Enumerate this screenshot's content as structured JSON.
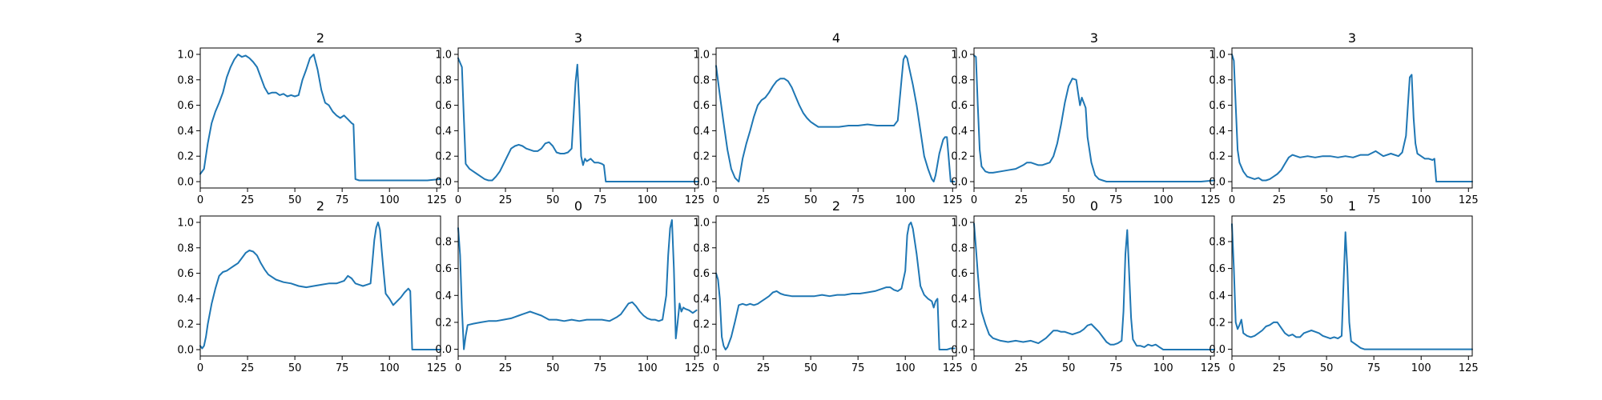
{
  "figure": {
    "line_color": "#1f77b4"
  },
  "chart_data": [
    {
      "type": "line",
      "title": "2",
      "xlim": [
        0,
        127
      ],
      "ylim": [
        -0.05,
        1.05
      ],
      "xticks": [
        0,
        25,
        50,
        75,
        100,
        125
      ],
      "yticks": [
        0.0,
        0.2,
        0.4,
        0.6,
        0.8,
        1.0
      ],
      "x": [
        0,
        2,
        4,
        6,
        8,
        10,
        12,
        14,
        16,
        18,
        20,
        22,
        24,
        26,
        28,
        30,
        32,
        34,
        36,
        38,
        40,
        42,
        44,
        46,
        48,
        50,
        52,
        54,
        56,
        58,
        60,
        62,
        64,
        66,
        68,
        70,
        72,
        74,
        76,
        78,
        80,
        81,
        82,
        84,
        90,
        100,
        110,
        120,
        127
      ],
      "y": [
        0.06,
        0.1,
        0.3,
        0.46,
        0.55,
        0.62,
        0.7,
        0.82,
        0.9,
        0.96,
        1.0,
        0.98,
        0.99,
        0.97,
        0.94,
        0.9,
        0.82,
        0.74,
        0.69,
        0.7,
        0.7,
        0.68,
        0.69,
        0.67,
        0.68,
        0.67,
        0.68,
        0.8,
        0.88,
        0.97,
        1.0,
        0.88,
        0.72,
        0.62,
        0.6,
        0.55,
        0.52,
        0.5,
        0.52,
        0.49,
        0.46,
        0.45,
        0.02,
        0.01,
        0.01,
        0.01,
        0.01,
        0.01,
        0.02
      ]
    },
    {
      "type": "line",
      "title": "3",
      "xlim": [
        0,
        127
      ],
      "ylim": [
        -0.05,
        1.05
      ],
      "xticks": [
        0,
        25,
        50,
        75,
        100,
        125
      ],
      "yticks": [
        0.0,
        0.2,
        0.4,
        0.6,
        0.8,
        1.0
      ],
      "x": [
        0,
        2,
        3,
        4,
        5,
        6,
        8,
        10,
        12,
        14,
        16,
        18,
        20,
        22,
        24,
        26,
        28,
        30,
        32,
        34,
        36,
        38,
        40,
        42,
        44,
        46,
        48,
        50,
        52,
        54,
        56,
        58,
        60,
        62,
        63,
        64,
        65,
        66,
        67,
        68,
        70,
        72,
        74,
        76,
        77,
        78,
        80,
        90,
        100,
        110,
        120,
        127
      ],
      "y": [
        0.97,
        0.9,
        0.5,
        0.14,
        0.12,
        0.1,
        0.08,
        0.06,
        0.04,
        0.02,
        0.01,
        0.01,
        0.04,
        0.08,
        0.14,
        0.2,
        0.26,
        0.28,
        0.29,
        0.28,
        0.26,
        0.25,
        0.24,
        0.24,
        0.26,
        0.3,
        0.31,
        0.28,
        0.23,
        0.22,
        0.22,
        0.23,
        0.26,
        0.78,
        0.92,
        0.6,
        0.2,
        0.13,
        0.18,
        0.16,
        0.18,
        0.15,
        0.15,
        0.14,
        0.13,
        0.0,
        0.0,
        0.0,
        0.0,
        0.0,
        0.0,
        0.0
      ]
    },
    {
      "type": "line",
      "title": "4",
      "xlim": [
        0,
        127
      ],
      "ylim": [
        -0.05,
        1.05
      ],
      "xticks": [
        0,
        25,
        50,
        75,
        100,
        125
      ],
      "yticks": [
        0.0,
        0.2,
        0.4,
        0.6,
        0.8,
        1.0
      ],
      "x": [
        0,
        2,
        4,
        6,
        8,
        10,
        12,
        14,
        16,
        18,
        20,
        22,
        24,
        26,
        28,
        30,
        32,
        34,
        36,
        38,
        40,
        42,
        44,
        46,
        48,
        50,
        52,
        54,
        56,
        60,
        65,
        70,
        75,
        80,
        85,
        90,
        94,
        96,
        98,
        99,
        100,
        101,
        102,
        104,
        106,
        108,
        110,
        112,
        114,
        115,
        116,
        118,
        120,
        121,
        122,
        124,
        126
      ],
      "y": [
        0.91,
        0.68,
        0.46,
        0.25,
        0.1,
        0.03,
        0.0,
        0.18,
        0.3,
        0.4,
        0.51,
        0.6,
        0.64,
        0.66,
        0.7,
        0.75,
        0.79,
        0.81,
        0.81,
        0.79,
        0.74,
        0.67,
        0.6,
        0.54,
        0.5,
        0.47,
        0.45,
        0.43,
        0.43,
        0.43,
        0.43,
        0.44,
        0.44,
        0.45,
        0.44,
        0.44,
        0.44,
        0.48,
        0.8,
        0.96,
        0.99,
        0.97,
        0.9,
        0.76,
        0.6,
        0.4,
        0.2,
        0.1,
        0.02,
        0.0,
        0.05,
        0.22,
        0.33,
        0.35,
        0.35,
        0.0,
        0.0
      ]
    },
    {
      "type": "line",
      "title": "3",
      "xlim": [
        0,
        127
      ],
      "ylim": [
        -0.05,
        1.05
      ],
      "xticks": [
        0,
        25,
        50,
        75,
        100,
        125
      ],
      "yticks": [
        0.0,
        0.2,
        0.4,
        0.6,
        0.8,
        1.0
      ],
      "x": [
        0,
        1,
        2,
        3,
        4,
        6,
        8,
        10,
        14,
        18,
        22,
        26,
        28,
        30,
        32,
        34,
        36,
        38,
        40,
        42,
        44,
        46,
        48,
        50,
        52,
        54,
        55,
        56,
        57,
        58,
        59,
        60,
        62,
        64,
        66,
        68,
        70,
        80,
        90,
        100,
        110,
        120,
        127
      ],
      "y": [
        0.99,
        0.98,
        0.6,
        0.25,
        0.12,
        0.08,
        0.07,
        0.07,
        0.08,
        0.09,
        0.1,
        0.13,
        0.15,
        0.15,
        0.14,
        0.13,
        0.13,
        0.14,
        0.15,
        0.2,
        0.3,
        0.45,
        0.62,
        0.75,
        0.81,
        0.8,
        0.7,
        0.6,
        0.66,
        0.62,
        0.58,
        0.35,
        0.15,
        0.05,
        0.02,
        0.01,
        0.0,
        0.0,
        0.0,
        0.0,
        0.0,
        0.0,
        0.01
      ]
    },
    {
      "type": "line",
      "title": "3",
      "xlim": [
        0,
        127
      ],
      "ylim": [
        -0.05,
        1.05
      ],
      "xticks": [
        0,
        25,
        50,
        75,
        100,
        125
      ],
      "yticks": [
        0.0,
        0.2,
        0.4,
        0.6,
        0.8,
        1.0
      ],
      "x": [
        0,
        1,
        2,
        3,
        4,
        6,
        8,
        10,
        12,
        14,
        16,
        18,
        20,
        22,
        24,
        26,
        28,
        30,
        32,
        34,
        36,
        40,
        44,
        48,
        52,
        56,
        60,
        64,
        68,
        72,
        76,
        80,
        84,
        88,
        90,
        92,
        93,
        94,
        95,
        96,
        97,
        98,
        100,
        102,
        104,
        106,
        107,
        108,
        110,
        120,
        127
      ],
      "y": [
        1.0,
        0.95,
        0.6,
        0.25,
        0.15,
        0.08,
        0.04,
        0.03,
        0.02,
        0.03,
        0.01,
        0.01,
        0.02,
        0.04,
        0.06,
        0.09,
        0.14,
        0.19,
        0.21,
        0.2,
        0.19,
        0.2,
        0.19,
        0.2,
        0.2,
        0.19,
        0.2,
        0.19,
        0.21,
        0.21,
        0.24,
        0.2,
        0.22,
        0.2,
        0.23,
        0.36,
        0.6,
        0.82,
        0.84,
        0.5,
        0.3,
        0.22,
        0.2,
        0.18,
        0.18,
        0.17,
        0.18,
        0.0,
        0.0,
        0.0,
        0.0
      ]
    },
    {
      "type": "line",
      "title": "2",
      "xlim": [
        0,
        127
      ],
      "ylim": [
        -0.05,
        1.05
      ],
      "xticks": [
        0,
        25,
        50,
        75,
        100,
        125
      ],
      "yticks": [
        0.0,
        0.2,
        0.4,
        0.6,
        0.8,
        1.0
      ],
      "x": [
        0,
        1,
        2,
        3,
        4,
        6,
        8,
        10,
        12,
        14,
        16,
        18,
        20,
        22,
        24,
        26,
        28,
        30,
        32,
        34,
        36,
        40,
        44,
        48,
        52,
        56,
        60,
        64,
        68,
        72,
        76,
        78,
        80,
        82,
        84,
        86,
        88,
        90,
        92,
        93,
        94,
        95,
        96,
        97,
        98,
        100,
        102,
        104,
        106,
        108,
        110,
        111,
        112,
        114,
        120,
        127
      ],
      "y": [
        0.03,
        0.01,
        0.03,
        0.1,
        0.2,
        0.36,
        0.48,
        0.58,
        0.61,
        0.62,
        0.64,
        0.66,
        0.68,
        0.72,
        0.76,
        0.78,
        0.77,
        0.74,
        0.68,
        0.63,
        0.59,
        0.55,
        0.53,
        0.52,
        0.5,
        0.49,
        0.5,
        0.51,
        0.52,
        0.52,
        0.54,
        0.58,
        0.56,
        0.52,
        0.51,
        0.5,
        0.51,
        0.52,
        0.86,
        0.96,
        1.0,
        0.94,
        0.76,
        0.6,
        0.44,
        0.4,
        0.35,
        0.38,
        0.41,
        0.45,
        0.48,
        0.46,
        0.0,
        0.0,
        0.0,
        0.0
      ]
    },
    {
      "type": "line",
      "title": "0",
      "xlim": [
        0,
        127
      ],
      "ylim": [
        -0.05,
        0.99
      ],
      "xticks": [
        0,
        25,
        50,
        75,
        100,
        125
      ],
      "yticks": [
        0.0,
        0.2,
        0.4,
        0.6,
        0.8
      ],
      "x": [
        0,
        1,
        2,
        3,
        4,
        5,
        8,
        12,
        16,
        20,
        24,
        28,
        30,
        32,
        34,
        36,
        38,
        40,
        44,
        48,
        52,
        56,
        60,
        64,
        68,
        72,
        76,
        80,
        84,
        86,
        88,
        90,
        92,
        94,
        96,
        98,
        100,
        102,
        104,
        106,
        108,
        110,
        111,
        112,
        113,
        114,
        115,
        116,
        117,
        118,
        119,
        120,
        122,
        124,
        126
      ],
      "y": [
        0.9,
        0.7,
        0.3,
        0.0,
        0.1,
        0.18,
        0.19,
        0.2,
        0.21,
        0.21,
        0.22,
        0.23,
        0.24,
        0.25,
        0.26,
        0.27,
        0.28,
        0.27,
        0.25,
        0.22,
        0.22,
        0.21,
        0.22,
        0.21,
        0.22,
        0.22,
        0.22,
        0.21,
        0.24,
        0.26,
        0.3,
        0.34,
        0.35,
        0.32,
        0.28,
        0.25,
        0.23,
        0.22,
        0.22,
        0.21,
        0.22,
        0.4,
        0.7,
        0.9,
        0.96,
        0.6,
        0.08,
        0.2,
        0.34,
        0.28,
        0.31,
        0.3,
        0.29,
        0.27,
        0.29
      ]
    },
    {
      "type": "line",
      "title": "2",
      "xlim": [
        0,
        127
      ],
      "ylim": [
        -0.05,
        1.05
      ],
      "xticks": [
        0,
        25,
        50,
        75,
        100,
        125
      ],
      "yticks": [
        0.0,
        0.2,
        0.4,
        0.6,
        0.8,
        1.0
      ],
      "x": [
        0,
        1,
        2,
        3,
        4,
        5,
        6,
        8,
        10,
        12,
        14,
        16,
        18,
        20,
        22,
        24,
        26,
        28,
        30,
        32,
        34,
        36,
        40,
        44,
        48,
        52,
        56,
        60,
        64,
        68,
        72,
        76,
        80,
        84,
        88,
        90,
        92,
        94,
        96,
        98,
        100,
        101,
        102,
        103,
        104,
        106,
        108,
        110,
        112,
        114,
        115,
        116,
        117,
        118,
        120,
        122,
        124,
        126
      ],
      "y": [
        0.6,
        0.55,
        0.4,
        0.1,
        0.03,
        0.0,
        0.02,
        0.1,
        0.22,
        0.35,
        0.36,
        0.35,
        0.36,
        0.35,
        0.36,
        0.38,
        0.4,
        0.42,
        0.45,
        0.46,
        0.44,
        0.43,
        0.42,
        0.42,
        0.42,
        0.42,
        0.43,
        0.42,
        0.43,
        0.43,
        0.44,
        0.44,
        0.45,
        0.46,
        0.48,
        0.49,
        0.49,
        0.47,
        0.46,
        0.48,
        0.62,
        0.9,
        0.98,
        1.0,
        0.95,
        0.75,
        0.5,
        0.43,
        0.4,
        0.38,
        0.33,
        0.38,
        0.4,
        0.0,
        0.0,
        0.0,
        0.01,
        0.01
      ]
    },
    {
      "type": "line",
      "title": "0",
      "xlim": [
        0,
        127
      ],
      "ylim": [
        -0.05,
        1.05
      ],
      "xticks": [
        0,
        25,
        50,
        75,
        100,
        125
      ],
      "yticks": [
        0.0,
        0.2,
        0.4,
        0.6,
        0.8,
        1.0
      ],
      "x": [
        0,
        1,
        2,
        3,
        4,
        6,
        8,
        10,
        12,
        14,
        18,
        22,
        26,
        30,
        34,
        36,
        38,
        40,
        42,
        44,
        46,
        48,
        50,
        52,
        54,
        56,
        58,
        60,
        62,
        64,
        66,
        68,
        70,
        72,
        74,
        76,
        78,
        79,
        80,
        81,
        82,
        83,
        84,
        86,
        88,
        90,
        92,
        94,
        96,
        98,
        100,
        110,
        120,
        127
      ],
      "y": [
        0.99,
        0.8,
        0.6,
        0.42,
        0.3,
        0.2,
        0.12,
        0.09,
        0.08,
        0.07,
        0.06,
        0.07,
        0.06,
        0.07,
        0.05,
        0.07,
        0.09,
        0.12,
        0.15,
        0.15,
        0.14,
        0.14,
        0.13,
        0.12,
        0.13,
        0.14,
        0.16,
        0.19,
        0.2,
        0.17,
        0.14,
        0.1,
        0.06,
        0.04,
        0.04,
        0.05,
        0.07,
        0.3,
        0.75,
        0.94,
        0.6,
        0.25,
        0.08,
        0.03,
        0.03,
        0.02,
        0.04,
        0.03,
        0.04,
        0.02,
        0.0,
        0.0,
        0.0,
        0.0
      ]
    },
    {
      "type": "line",
      "title": "1",
      "xlim": [
        0,
        127
      ],
      "ylim": [
        -0.05,
        0.99
      ],
      "xticks": [
        0,
        25,
        50,
        75,
        100,
        125
      ],
      "yticks": [
        0.0,
        0.2,
        0.4,
        0.6,
        0.8
      ],
      "x": [
        0,
        1,
        2,
        3,
        4,
        5,
        6,
        8,
        10,
        12,
        14,
        16,
        18,
        20,
        22,
        24,
        26,
        28,
        30,
        32,
        34,
        36,
        38,
        40,
        42,
        44,
        46,
        48,
        50,
        52,
        54,
        56,
        58,
        59,
        60,
        61,
        62,
        63,
        64,
        66,
        68,
        70,
        80,
        90,
        100,
        110,
        120,
        127
      ],
      "y": [
        0.93,
        0.6,
        0.2,
        0.15,
        0.18,
        0.22,
        0.12,
        0.1,
        0.09,
        0.1,
        0.12,
        0.14,
        0.17,
        0.18,
        0.2,
        0.2,
        0.16,
        0.12,
        0.1,
        0.11,
        0.09,
        0.09,
        0.12,
        0.13,
        0.14,
        0.13,
        0.12,
        0.1,
        0.09,
        0.08,
        0.09,
        0.08,
        0.1,
        0.5,
        0.87,
        0.6,
        0.2,
        0.06,
        0.05,
        0.03,
        0.01,
        0.0,
        0.0,
        0.0,
        0.0,
        0.0,
        0.0,
        0.0
      ]
    }
  ]
}
